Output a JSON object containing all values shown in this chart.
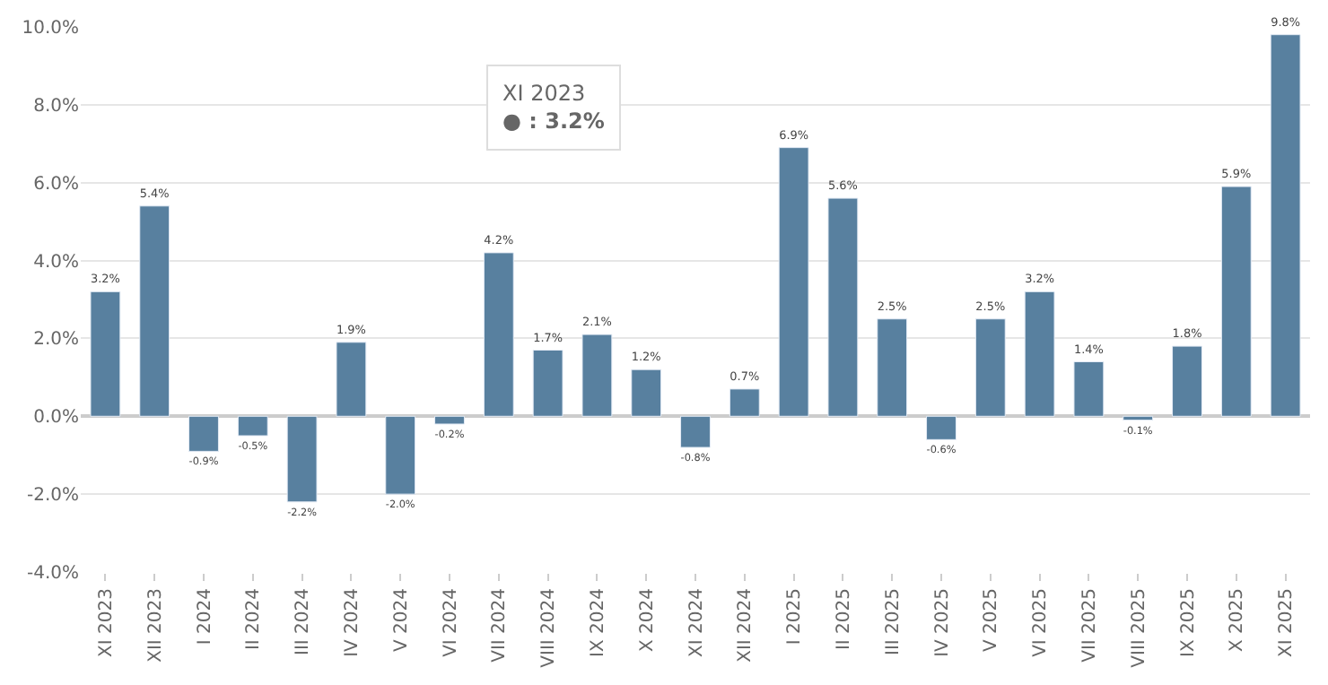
{
  "chart_data": {
    "type": "bar",
    "categories": [
      "XI 2023",
      "XII 2023",
      "I 2024",
      "II 2024",
      "III 2024",
      "IV 2024",
      "V 2024",
      "VI 2024",
      "VII 2024",
      "VIII 2024",
      "IX 2024",
      "X 2024",
      "XI 2024",
      "XII 2024",
      "I 2025",
      "II 2025",
      "III 2025",
      "IV 2025",
      "V 2025",
      "VI 2025",
      "VII 2025",
      "VIII 2025",
      "IX 2025",
      "X 2025",
      "XI 2025"
    ],
    "values": [
      3.2,
      5.4,
      -0.9,
      -0.5,
      -2.2,
      1.9,
      -2.0,
      -0.2,
      4.2,
      1.7,
      2.1,
      1.2,
      -0.8,
      0.7,
      6.9,
      5.6,
      2.5,
      -0.6,
      2.5,
      3.2,
      1.4,
      -0.1,
      1.8,
      5.9,
      9.8
    ],
    "value_labels": [
      "3.2%",
      "5.4%",
      "-0.9%",
      "-0.5%",
      "-2.2%",
      "1.9%",
      "-2.0%",
      "-0.2%",
      "4.2%",
      "1.7%",
      "2.1%",
      "1.2%",
      "-0.8%",
      "0.7%",
      "6.9%",
      "5.6%",
      "2.5%",
      "-0.6%",
      "2.5%",
      "3.2%",
      "1.4%",
      "-0.1%",
      "1.8%",
      "5.9%",
      "9.8%"
    ],
    "color": "#58809f",
    "ylim": [
      -4,
      10
    ],
    "yticks": [
      {
        "value": -4,
        "label": "-4.0%"
      },
      {
        "value": -2,
        "label": "-2.0%"
      },
      {
        "value": 0,
        "label": "0.0%"
      },
      {
        "value": 2,
        "label": "2.0%"
      },
      {
        "value": 4,
        "label": "4.0%"
      },
      {
        "value": 6,
        "label": "6.0%"
      },
      {
        "value": 8,
        "label": "8.0%"
      },
      {
        "value": 10,
        "label": "10.0%"
      }
    ],
    "grid": "y",
    "annotations": [
      "XI 2023",
      "● : 3.2%"
    ]
  }
}
